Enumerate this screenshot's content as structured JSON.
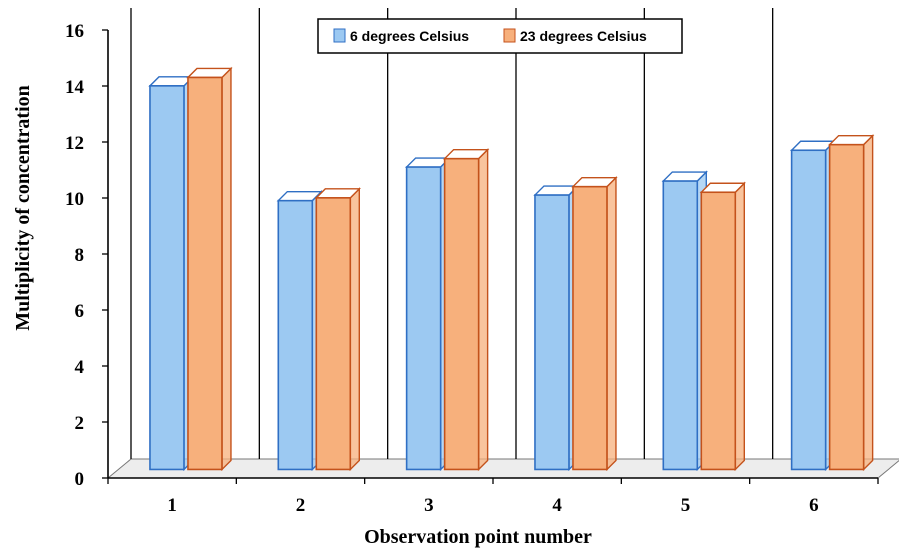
{
  "chart_data": {
    "type": "bar",
    "style": "3d-clustered-column",
    "categories": [
      "1",
      "2",
      "3",
      "4",
      "5",
      "6"
    ],
    "series": [
      {
        "name": "6 degrees Celsius",
        "values": [
          13.7,
          9.6,
          10.8,
          9.8,
          10.3,
          11.4
        ],
        "color": "#9cc9f2",
        "edge": "#2f6fc4"
      },
      {
        "name": "23 degrees Celsius",
        "values": [
          14.0,
          9.7,
          11.1,
          10.1,
          9.9,
          11.6
        ],
        "color": "#f7b07c",
        "edge": "#c4521b"
      }
    ],
    "xlabel": "Observation point number",
    "ylabel": "Multiplicity of concentration",
    "ylim": [
      0,
      16
    ],
    "yticks": [
      "0",
      "2",
      "4",
      "6",
      "8",
      "10",
      "12",
      "14",
      "16"
    ],
    "grid": "vertical category dividers",
    "legend_position": "top-center"
  }
}
